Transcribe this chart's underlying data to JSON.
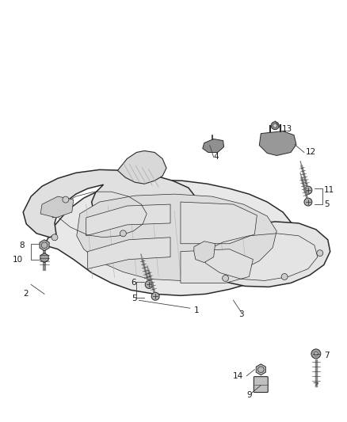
{
  "bg_color": "#ffffff",
  "figsize": [
    4.38,
    5.33
  ],
  "dpi": 100,
  "lc": "#2a2a2a",
  "lw": 1.1,
  "fill_main": "#e8e8e8",
  "fill_left": "#e0e0e0",
  "fill_right": "#e4e4e4",
  "fill_dark": "#c8c8c8",
  "fill_mid": "#d8d8d8"
}
